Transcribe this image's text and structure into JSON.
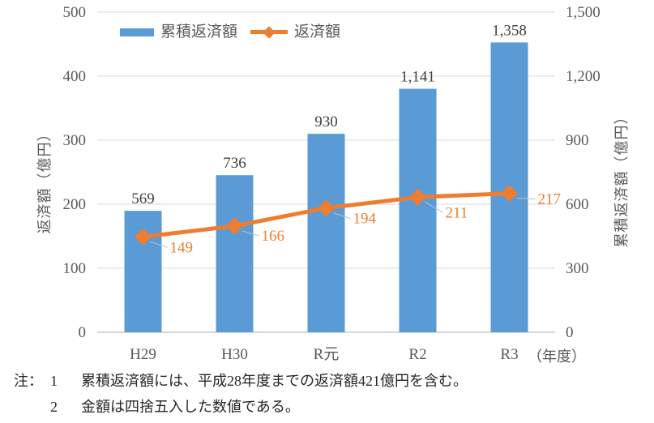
{
  "chart_data": {
    "type": "combo-bar-line",
    "categories": [
      "H29",
      "H30",
      "R元",
      "R2",
      "R3"
    ],
    "x_axis_unit": "（年度）",
    "series": [
      {
        "name": "累積返済額",
        "type": "bar",
        "axis": "right",
        "color": "#5B9BD5",
        "values": [
          569,
          736,
          930,
          1141,
          1358
        ],
        "value_labels": [
          "569",
          "736",
          "930",
          "1,141",
          "1,358"
        ]
      },
      {
        "name": "返済額",
        "type": "line",
        "axis": "left",
        "color": "#ED7D31",
        "values": [
          149,
          166,
          194,
          211,
          217
        ],
        "value_labels": [
          "149",
          "166",
          "194",
          "211",
          "217"
        ]
      }
    ],
    "left_axis": {
      "title": "返済額（億円）",
      "min": 0,
      "max": 500,
      "step": 100,
      "tick_labels": [
        "0",
        "100",
        "200",
        "300",
        "400",
        "500"
      ]
    },
    "right_axis": {
      "title": "累積返済額（億円）",
      "min": 0,
      "max": 1500,
      "step": 300,
      "tick_labels": [
        "0",
        "300",
        "600",
        "900",
        "1,200",
        "1,500"
      ]
    },
    "legend_position": "top",
    "grid": true
  },
  "notes": {
    "prefix": "注：",
    "items": [
      {
        "num": "1",
        "text": "累積返済額には、平成28年度までの返済額421億円を含む。"
      },
      {
        "num": "2",
        "text": "金額は四捨五入した数値である。"
      }
    ]
  },
  "colors": {
    "bar": "#5B9BD5",
    "line": "#ED7D31",
    "grid": "#D9D9D9",
    "axis_line": "#BFBFBF",
    "tick_text": "#595959",
    "bar_label_text": "#404040",
    "line_label_text": "#ED7D31",
    "leader": "#BFBFBF",
    "note_text": "#262626"
  }
}
